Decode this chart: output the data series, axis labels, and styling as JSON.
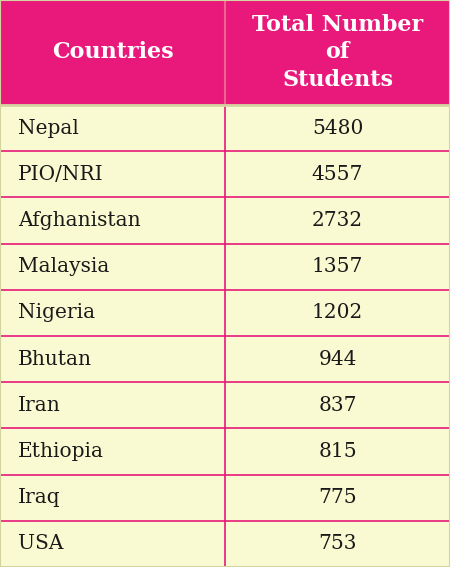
{
  "header_col1": "Countries",
  "header_col2": "Total Number\nof\nStudents",
  "rows": [
    [
      "Nepal",
      "5480"
    ],
    [
      "PIO/NRI",
      "4557"
    ],
    [
      "Afghanistan",
      "2732"
    ],
    [
      "Malaysia",
      "1357"
    ],
    [
      "Nigeria",
      "1202"
    ],
    [
      "Bhutan",
      "944"
    ],
    [
      "Iran",
      "837"
    ],
    [
      "Ethiopia",
      "815"
    ],
    [
      "Iraq",
      "775"
    ],
    [
      "USA",
      "753"
    ]
  ],
  "header_bg": "#E8197A",
  "header_text_color": "#FFFFFF",
  "row_bg": "#FAFAD2",
  "row_text_color": "#1a1a1a",
  "divider_color": "#E8197A",
  "border_color": "#d4d4a0",
  "header_fontsize": 16,
  "row_fontsize": 14.5,
  "fig_bg": "#FAFAD2",
  "col_split": 0.5
}
